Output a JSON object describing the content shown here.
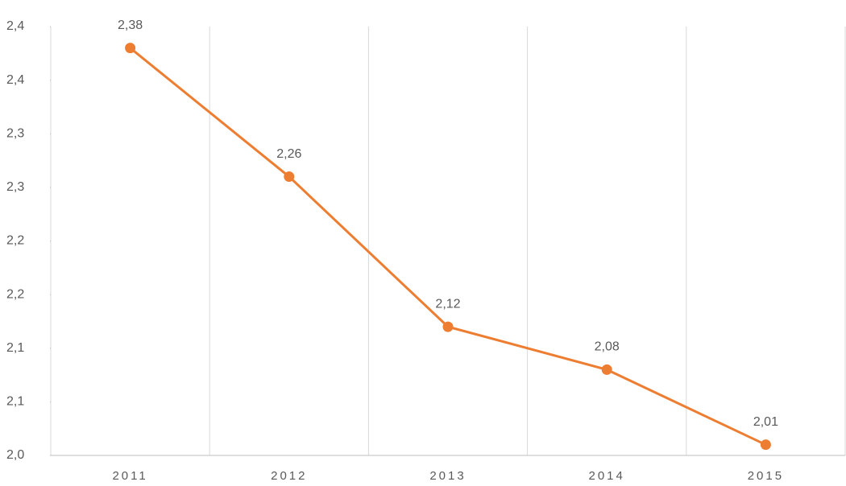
{
  "chart_data": {
    "type": "line",
    "categories": [
      "2011",
      "2012",
      "2013",
      "2014",
      "2015"
    ],
    "series": [
      {
        "color": "#ed7d31",
        "values": [
          2.38,
          2.26,
          2.12,
          2.08,
          2.01
        ],
        "value_labels": [
          "2,38",
          "2,26",
          "2,12",
          "2,08",
          "2,01"
        ]
      }
    ],
    "ylim": [
      2.0,
      2.4
    ],
    "yticks": [
      {
        "value": 2.0,
        "label": "2,0"
      },
      {
        "value": 2.05,
        "label": "2,1"
      },
      {
        "value": 2.1,
        "label": "2,1"
      },
      {
        "value": 2.15,
        "label": "2,2"
      },
      {
        "value": 2.2,
        "label": "2,2"
      },
      {
        "value": 2.25,
        "label": "2,3"
      },
      {
        "value": 2.3,
        "label": "2,3"
      },
      {
        "value": 2.35,
        "label": "2,4"
      },
      {
        "value": 2.4,
        "label": "2,4"
      }
    ]
  }
}
